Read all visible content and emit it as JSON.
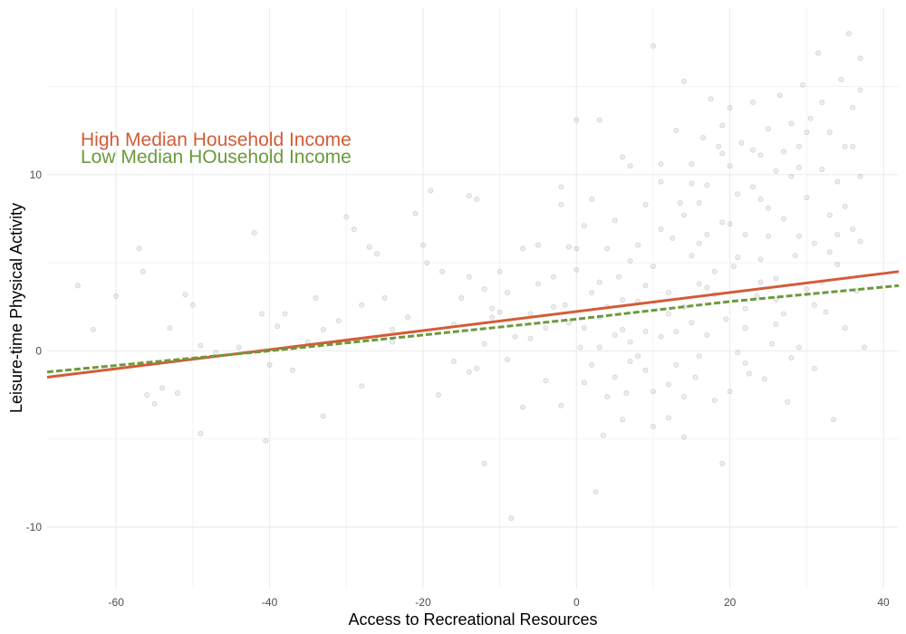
{
  "chart_data": {
    "type": "scatter",
    "title": "",
    "xlabel": "Access to Recreational Resources",
    "ylabel": "Leisure-time Physical Activity",
    "xlim": [
      -69,
      42
    ],
    "ylim": [
      -13.5,
      19.5
    ],
    "x_ticks": [
      -60,
      -40,
      -20,
      0,
      20,
      40
    ],
    "y_ticks": [
      -10,
      0,
      10
    ],
    "grid": true,
    "legend_position": "top-left",
    "legend": [
      {
        "label": "High Median Household Income",
        "color": "#d35c37"
      },
      {
        "label": "Low Median HOusehold Income",
        "color": "#6b9a3c"
      }
    ],
    "series": [
      {
        "kind": "line",
        "style": "solid",
        "color": "#d35c37",
        "x": [
          -69,
          42
        ],
        "y": [
          -1.5,
          4.5
        ]
      },
      {
        "kind": "line",
        "style": "dashed",
        "color": "#6b9a3c",
        "x": [
          -69,
          -40,
          0,
          20,
          42
        ],
        "y": [
          -1.2,
          0.0,
          1.8,
          2.8,
          3.7
        ]
      }
    ],
    "points_color": "#999999",
    "points": [
      [
        -65,
        3.7
      ],
      [
        -63,
        1.2
      ],
      [
        -60,
        3.1
      ],
      [
        -57,
        5.8
      ],
      [
        -56.5,
        4.5
      ],
      [
        -56,
        -2.5
      ],
      [
        -55,
        -3
      ],
      [
        -54,
        -2.1
      ],
      [
        -53,
        1.3
      ],
      [
        -52,
        -2.4
      ],
      [
        -51,
        3.2
      ],
      [
        -50,
        2.6
      ],
      [
        -49,
        0.3
      ],
      [
        -49,
        -4.7
      ],
      [
        -47,
        -0.1
      ],
      [
        -42,
        6.7
      ],
      [
        -41,
        2.1
      ],
      [
        -40.5,
        -5.1
      ],
      [
        -40,
        -0.8
      ],
      [
        -38,
        2.1
      ],
      [
        -37,
        -1.1
      ],
      [
        -35,
        0.5
      ],
      [
        -34,
        3
      ],
      [
        -33,
        -3.7
      ],
      [
        -31,
        1.7
      ],
      [
        -30,
        7.6
      ],
      [
        -29,
        6.9
      ],
      [
        -28,
        -2
      ],
      [
        -27,
        5.9
      ],
      [
        -26,
        5.5
      ],
      [
        -25,
        3
      ],
      [
        -24,
        0.5
      ],
      [
        -22,
        1.9
      ],
      [
        -21,
        7.8
      ],
      [
        -20,
        6
      ],
      [
        -19.5,
        5
      ],
      [
        -19,
        9.1
      ],
      [
        -18,
        -2.5
      ],
      [
        -17.5,
        4.5
      ],
      [
        -16,
        1.5
      ],
      [
        -15,
        3
      ],
      [
        -14,
        4.2
      ],
      [
        -14,
        8.8
      ],
      [
        -13,
        -1
      ],
      [
        -13,
        8.6
      ],
      [
        -12,
        -6.4
      ],
      [
        -12,
        3.5
      ],
      [
        -11,
        1.9
      ],
      [
        -10,
        4.5
      ],
      [
        -10,
        2.2
      ],
      [
        -9,
        -0.5
      ],
      [
        -8.5,
        -9.5
      ],
      [
        -7,
        -3.2
      ],
      [
        -7,
        5.8
      ],
      [
        -6,
        2.1
      ],
      [
        -5,
        3.8
      ],
      [
        -5,
        6
      ],
      [
        -4,
        1.3
      ],
      [
        -3,
        4.2
      ],
      [
        -2,
        8.3
      ],
      [
        -2,
        9.3
      ],
      [
        -1.5,
        2.6
      ],
      [
        -1,
        5.9
      ],
      [
        0,
        13.1
      ],
      [
        0,
        4.6
      ],
      [
        0.5,
        0.2
      ],
      [
        1,
        1.3
      ],
      [
        1,
        7.1
      ],
      [
        2,
        -0.8
      ],
      [
        2,
        3.3
      ],
      [
        2.5,
        -8
      ],
      [
        3,
        0.2
      ],
      [
        3,
        13.1
      ],
      [
        3.5,
        -4.8
      ],
      [
        4,
        2.5
      ],
      [
        4,
        5.8
      ],
      [
        5,
        -1.5
      ],
      [
        5,
        7.4
      ],
      [
        5.5,
        4.2
      ],
      [
        6,
        1.2
      ],
      [
        6,
        11
      ],
      [
        6.5,
        -2.4
      ],
      [
        7,
        0.5
      ],
      [
        7,
        10.5
      ],
      [
        8,
        2.8
      ],
      [
        8,
        6
      ],
      [
        9,
        -1.1
      ],
      [
        9,
        8.3
      ],
      [
        10,
        -4.3
      ],
      [
        10,
        4.8
      ],
      [
        10,
        17.3
      ],
      [
        11,
        0.8
      ],
      [
        11,
        9.6
      ],
      [
        12,
        -1.9
      ],
      [
        12,
        3.3
      ],
      [
        12.5,
        6.4
      ],
      [
        13,
        -0.8
      ],
      [
        13,
        12.5
      ],
      [
        13.5,
        8.4
      ],
      [
        14,
        -4.9
      ],
      [
        14,
        2.5
      ],
      [
        14,
        15.3
      ],
      [
        15,
        5.4
      ],
      [
        15,
        10.6
      ],
      [
        15.5,
        -1.5
      ],
      [
        16,
        3.8
      ],
      [
        16,
        8.4
      ],
      [
        16.5,
        12.1
      ],
      [
        17,
        0.9
      ],
      [
        17,
        6.6
      ],
      [
        17.5,
        14.3
      ],
      [
        18,
        -2.8
      ],
      [
        18,
        4.5
      ],
      [
        18.5,
        11.6
      ],
      [
        19,
        -6.4
      ],
      [
        19,
        7.3
      ],
      [
        19.5,
        1.8
      ],
      [
        20,
        10.5
      ],
      [
        20,
        13.8
      ],
      [
        20.5,
        4.8
      ],
      [
        21,
        -0.1
      ],
      [
        21,
        8.9
      ],
      [
        21.5,
        11.8
      ],
      [
        22,
        2.4
      ],
      [
        22,
        6.6
      ],
      [
        22.5,
        -1.3
      ],
      [
        23,
        9.3
      ],
      [
        23,
        14.1
      ],
      [
        23.5,
        3.1
      ],
      [
        24,
        5.2
      ],
      [
        24,
        11.1
      ],
      [
        24.5,
        -1.6
      ],
      [
        25,
        8.1
      ],
      [
        25,
        12.6
      ],
      [
        25.5,
        0.4
      ],
      [
        26,
        4.1
      ],
      [
        26,
        10.2
      ],
      [
        26.5,
        14.5
      ],
      [
        27,
        2.1
      ],
      [
        27,
        7.5
      ],
      [
        27.5,
        -2.9
      ],
      [
        28,
        9.9
      ],
      [
        28,
        12.9
      ],
      [
        28.5,
        5.4
      ],
      [
        29,
        0.2
      ],
      [
        29,
        11.6
      ],
      [
        29.5,
        15.1
      ],
      [
        30,
        3.5
      ],
      [
        30,
        8.7
      ],
      [
        30.5,
        13.2
      ],
      [
        31,
        -1
      ],
      [
        31,
        6.1
      ],
      [
        31.5,
        16.9
      ],
      [
        32,
        10.3
      ],
      [
        32,
        14.1
      ],
      [
        32.5,
        2.2
      ],
      [
        33,
        7.7
      ],
      [
        33,
        12.4
      ],
      [
        33.5,
        -3.9
      ],
      [
        34,
        4.9
      ],
      [
        34,
        9.6
      ],
      [
        34.5,
        15.4
      ],
      [
        35,
        1.3
      ],
      [
        35,
        11.6
      ],
      [
        35.5,
        18
      ],
      [
        36,
        6.9
      ],
      [
        36,
        13.8
      ],
      [
        36.5,
        3.4
      ],
      [
        37,
        9.9
      ],
      [
        37,
        14.8
      ],
      [
        37.5,
        0.2
      ],
      [
        37,
        16.6
      ],
      [
        29,
        10.4
      ],
      [
        27,
        11.3
      ],
      [
        23,
        11.4
      ],
      [
        19,
        11.2
      ],
      [
        17,
        9.4
      ],
      [
        15,
        9.5
      ],
      [
        11,
        10.6
      ],
      [
        7,
        5.1
      ],
      [
        3,
        3.9
      ],
      [
        -1,
        1.6
      ],
      [
        -3,
        2.5
      ],
      [
        -6,
        0.7
      ],
      [
        -9,
        3.3
      ],
      [
        -12,
        0.4
      ],
      [
        -16,
        -0.6
      ],
      [
        -24,
        1.2
      ],
      [
        -28,
        2.6
      ],
      [
        -33,
        1.2
      ],
      [
        -39,
        1.4
      ],
      [
        -44,
        0.2
      ],
      [
        25,
        6.5
      ],
      [
        21,
        5.3
      ],
      [
        18,
        3.2
      ],
      [
        14,
        7.7
      ],
      [
        12,
        2.1
      ],
      [
        9,
        1.1
      ],
      [
        6,
        2.9
      ],
      [
        4,
        -2.6
      ],
      [
        1,
        -1.8
      ],
      [
        -2,
        -3.1
      ],
      [
        33,
        5.6
      ],
      [
        31,
        2.6
      ],
      [
        28,
        -0.4
      ],
      [
        26,
        1.5
      ],
      [
        22,
        -0.7
      ],
      [
        20,
        -2.3
      ],
      [
        16,
        -0.3
      ],
      [
        13,
        1.1
      ],
      [
        8,
        -0.3
      ],
      [
        5,
        0.9
      ],
      [
        -4,
        -1.7
      ],
      [
        -8,
        0.8
      ],
      [
        -11,
        2.4
      ],
      [
        -14,
        -1.2
      ],
      [
        35,
        8.2
      ],
      [
        36,
        11.6
      ],
      [
        30,
        12.4
      ],
      [
        24,
        8.6
      ],
      [
        19,
        12.8
      ],
      [
        16,
        6.1
      ],
      [
        11,
        6.9
      ],
      [
        9,
        3.7
      ],
      [
        2,
        8.6
      ],
      [
        0,
        5.8
      ],
      [
        24,
        3.9
      ],
      [
        22,
        1.3
      ],
      [
        17,
        3.6
      ],
      [
        15,
        1.6
      ],
      [
        10,
        -2.3
      ],
      [
        7,
        -0.6
      ],
      [
        3,
        1.9
      ],
      [
        6,
        -3.9
      ],
      [
        12,
        -3.8
      ],
      [
        14,
        -2.6
      ],
      [
        20,
        7.2
      ],
      [
        26,
        2.9
      ],
      [
        29,
        6.5
      ],
      [
        32,
        3.9
      ],
      [
        34,
        6.6
      ],
      [
        37,
        6.2
      ]
    ]
  }
}
